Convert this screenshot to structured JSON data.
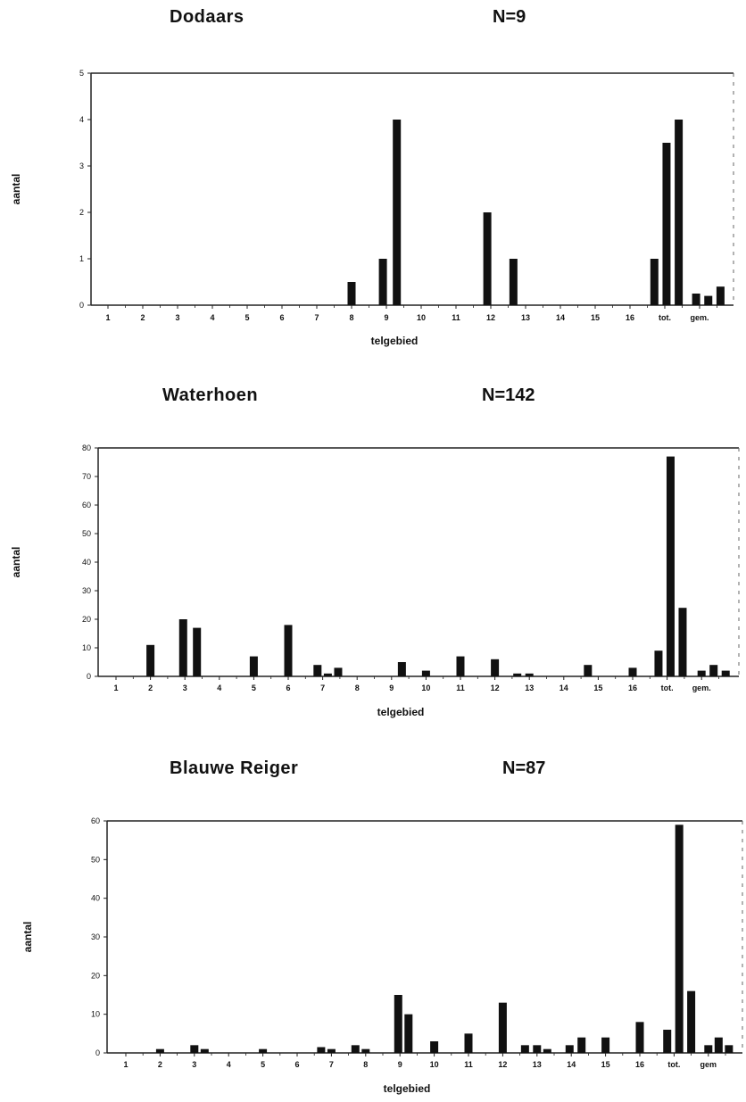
{
  "chart_data": [
    {
      "type": "bar",
      "title": "Dodaars",
      "n_label": "N=9",
      "xlabel": "telgebied",
      "ylabel": "aantal",
      "ylim": [
        0,
        5
      ],
      "yticks": [
        "0",
        "1",
        "2",
        "3",
        "4",
        "5"
      ],
      "xticks": [
        "1",
        "2",
        "3",
        "4",
        "5",
        "6",
        "7",
        "8",
        "9",
        "10",
        "11",
        "12",
        "13",
        "14",
        "15",
        "16",
        "tot.",
        "gem."
      ],
      "bars": [
        {
          "x": 8.0,
          "y": 0.5
        },
        {
          "x": 8.9,
          "y": 1.0
        },
        {
          "x": 9.3,
          "y": 4.0
        },
        {
          "x": 11.9,
          "y": 2.0
        },
        {
          "x": 12.65,
          "y": 1.0
        },
        {
          "x": 16.7,
          "y": 1.0
        },
        {
          "x": 17.05,
          "y": 3.5
        },
        {
          "x": 17.4,
          "y": 4.0
        },
        {
          "x": 17.9,
          "y": 0.25
        },
        {
          "x": 18.25,
          "y": 0.2
        },
        {
          "x": 18.6,
          "y": 0.4
        }
      ]
    },
    {
      "type": "bar",
      "title": "Waterhoen",
      "n_label": "N=142",
      "xlabel": "telgebied",
      "ylabel": "aantal",
      "ylim": [
        0,
        80
      ],
      "yticks": [
        "0",
        "10",
        "20",
        "30",
        "40",
        "50",
        "60",
        "70",
        "80"
      ],
      "xticks": [
        "1",
        "2",
        "3",
        "4",
        "5",
        "6",
        "7",
        "8",
        "9",
        "10",
        "11",
        "12",
        "13",
        "14",
        "15",
        "16",
        "tot.",
        "gem."
      ],
      "bars": [
        {
          "x": 2.0,
          "y": 11
        },
        {
          "x": 2.95,
          "y": 20
        },
        {
          "x": 3.35,
          "y": 17
        },
        {
          "x": 5.0,
          "y": 7
        },
        {
          "x": 6.0,
          "y": 18
        },
        {
          "x": 6.85,
          "y": 4
        },
        {
          "x": 7.15,
          "y": 1
        },
        {
          "x": 7.45,
          "y": 3
        },
        {
          "x": 9.3,
          "y": 5
        },
        {
          "x": 10.0,
          "y": 2
        },
        {
          "x": 11.0,
          "y": 7
        },
        {
          "x": 12.0,
          "y": 6
        },
        {
          "x": 12.65,
          "y": 1
        },
        {
          "x": 13.0,
          "y": 1
        },
        {
          "x": 14.7,
          "y": 4
        },
        {
          "x": 16.0,
          "y": 3
        },
        {
          "x": 16.75,
          "y": 9
        },
        {
          "x": 17.1,
          "y": 77
        },
        {
          "x": 17.45,
          "y": 24
        },
        {
          "x": 18.0,
          "y": 2
        },
        {
          "x": 18.35,
          "y": 4
        },
        {
          "x": 18.7,
          "y": 2
        }
      ]
    },
    {
      "type": "bar",
      "title": "Blauwe Reiger",
      "n_label": "N=87",
      "xlabel": "telgebied",
      "ylabel": "aantal",
      "ylim": [
        0,
        60
      ],
      "yticks": [
        "0",
        "10",
        "20",
        "30",
        "40",
        "50",
        "60"
      ],
      "xticks": [
        "1",
        "2",
        "3",
        "4",
        "5",
        "6",
        "7",
        "8",
        "9",
        "10",
        "11",
        "12",
        "13",
        "14",
        "15",
        "16",
        "tot.",
        "gem"
      ],
      "bars": [
        {
          "x": 2.0,
          "y": 1
        },
        {
          "x": 3.0,
          "y": 2
        },
        {
          "x": 3.3,
          "y": 1
        },
        {
          "x": 5.0,
          "y": 1
        },
        {
          "x": 6.7,
          "y": 1.5
        },
        {
          "x": 7.0,
          "y": 1
        },
        {
          "x": 7.7,
          "y": 2
        },
        {
          "x": 8.0,
          "y": 1
        },
        {
          "x": 8.95,
          "y": 15
        },
        {
          "x": 9.25,
          "y": 10
        },
        {
          "x": 10.0,
          "y": 3
        },
        {
          "x": 11.0,
          "y": 5
        },
        {
          "x": 12.0,
          "y": 13
        },
        {
          "x": 12.65,
          "y": 2
        },
        {
          "x": 13.0,
          "y": 2
        },
        {
          "x": 13.3,
          "y": 1
        },
        {
          "x": 13.95,
          "y": 2
        },
        {
          "x": 14.3,
          "y": 4
        },
        {
          "x": 15.0,
          "y": 4
        },
        {
          "x": 16.0,
          "y": 8
        },
        {
          "x": 16.8,
          "y": 6
        },
        {
          "x": 17.15,
          "y": 59
        },
        {
          "x": 17.5,
          "y": 16
        },
        {
          "x": 18.0,
          "y": 2
        },
        {
          "x": 18.3,
          "y": 4
        },
        {
          "x": 18.6,
          "y": 2
        }
      ]
    }
  ]
}
